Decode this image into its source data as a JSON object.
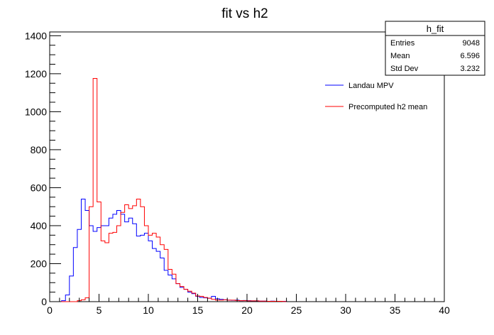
{
  "chart_data": {
    "type": "histogram",
    "title": "fit vs h2",
    "xlabel": "",
    "ylabel": "",
    "xlim": [
      0,
      40
    ],
    "ylim": [
      0,
      1420
    ],
    "bin_width": 0.4,
    "x_ticks": [
      0,
      5,
      10,
      15,
      20,
      25,
      30,
      35,
      40
    ],
    "y_ticks": [
      0,
      200,
      400,
      600,
      800,
      1000,
      1200,
      1400
    ],
    "grid": false,
    "legend_position": "top-right",
    "stats_box": {
      "title": "h_fit",
      "rows": [
        {
          "label": "Entries",
          "value": "9048"
        },
        {
          "label": "Mean",
          "value": "6.596"
        },
        {
          "label": "Std Dev",
          "value": "3.232"
        }
      ]
    },
    "series": [
      {
        "name": "Landau MPV",
        "color": "#0000ff",
        "values": [
          0,
          0,
          0,
          5,
          35,
          135,
          285,
          380,
          540,
          480,
          400,
          370,
          390,
          400,
          400,
          440,
          460,
          480,
          460,
          420,
          440,
          410,
          345,
          350,
          360,
          320,
          280,
          265,
          230,
          165,
          140,
          120,
          95,
          75,
          65,
          50,
          42,
          28,
          22,
          20,
          18,
          28,
          15,
          12,
          10,
          8,
          7,
          8,
          5,
          6,
          5,
          4,
          4,
          3,
          3,
          2,
          3,
          2,
          2,
          2
        ]
      },
      {
        "name": "Precomputed h2 mean",
        "color": "#ff0000",
        "values": [
          0,
          0,
          0,
          0,
          0,
          0,
          0,
          5,
          10,
          20,
          500,
          1175,
          525,
          320,
          310,
          360,
          365,
          400,
          470,
          510,
          490,
          505,
          540,
          500,
          400,
          350,
          360,
          340,
          300,
          275,
          170,
          145,
          95,
          80,
          65,
          55,
          45,
          30,
          28,
          22,
          18,
          12,
          8,
          8,
          10,
          8,
          8,
          6,
          5,
          5,
          4,
          4,
          4,
          3,
          3,
          2,
          2,
          2,
          2,
          1
        ]
      }
    ]
  }
}
